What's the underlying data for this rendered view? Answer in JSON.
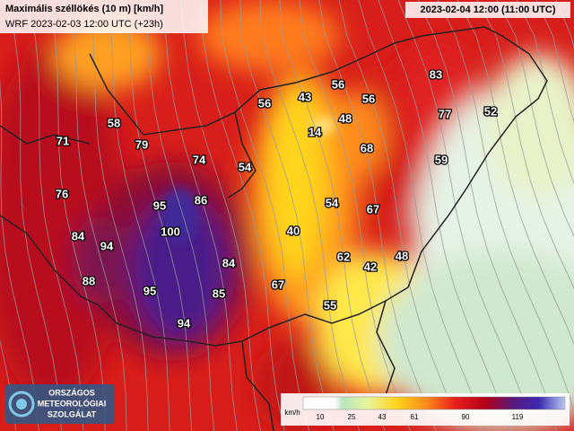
{
  "header": {
    "title": "Maximális széllökés (10 m) [km/h]",
    "subtitle": "WRF 2023-02-03 12:00 UTC (+23h)",
    "valid_time": "2023-02-04 12:00 (11:00 UTC)"
  },
  "stations": [
    "58",
    "71",
    "79",
    "74",
    "54",
    "76",
    "86",
    "95",
    "100",
    "84",
    "94",
    "88",
    "84",
    "95",
    "85",
    "94",
    "67",
    "55",
    "40",
    "54",
    "62",
    "42",
    "48",
    "67",
    "68",
    "14",
    "48",
    "43",
    "56",
    "56",
    "56",
    "83",
    "77",
    "52",
    "59"
  ],
  "legend": {
    "unit": "km/h",
    "ticks": [
      "10",
      "25",
      "43",
      "61",
      "90",
      "119"
    ]
  },
  "logo": [
    "ORSZÁGOS",
    "METEOROLÓGIAI",
    "SZOLGÁLAT"
  ]
}
